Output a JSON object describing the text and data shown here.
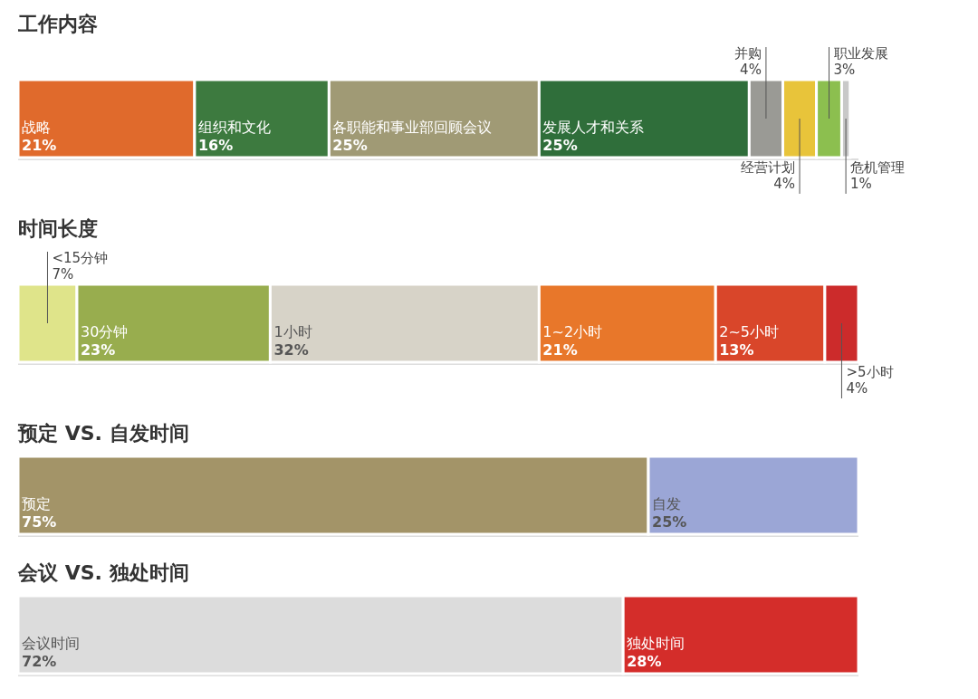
{
  "chart_data": [
    {
      "type": "bar",
      "title": "工作内容",
      "orientation": "horizontal",
      "stacked": true,
      "xlim": [
        0,
        100
      ],
      "categories": [
        null
      ],
      "series": [
        {
          "name": "战略",
          "color": "#e06a2c",
          "values": [
            21
          ],
          "value_labels": [
            "21%"
          ]
        },
        {
          "name": "组织和文化",
          "color": "#3d7a3f",
          "values": [
            16
          ],
          "value_labels": [
            "16%"
          ]
        },
        {
          "name": "各职能和事业部回顾会议",
          "color": "#a09a75",
          "values": [
            25
          ],
          "value_labels": [
            "25%"
          ]
        },
        {
          "name": "发展人才和关系",
          "color": "#2f6e3a",
          "values": [
            25
          ],
          "value_labels": [
            "25%"
          ]
        },
        {
          "name": "并购",
          "color": "#9a9a95",
          "values": [
            4
          ],
          "value_labels": [
            "4%"
          ]
        },
        {
          "name": "经营计划",
          "color": "#e8c43a",
          "values": [
            4
          ],
          "value_labels": [
            "4%"
          ]
        },
        {
          "name": "职业发展",
          "color": "#8cbf4f",
          "values": [
            3
          ],
          "value_labels": [
            "3%"
          ]
        },
        {
          "name": "危机管理",
          "color": "#c8c8c8",
          "values": [
            1
          ],
          "value_labels": [
            "1%"
          ]
        }
      ]
    },
    {
      "type": "bar",
      "title": "时间长度",
      "orientation": "horizontal",
      "stacked": true,
      "xlim": [
        0,
        100
      ],
      "categories": [
        null
      ],
      "series": [
        {
          "name": "<15分钟",
          "color": "#dfe48a",
          "values": [
            7
          ],
          "value_labels": [
            "7%"
          ]
        },
        {
          "name": "30分钟",
          "color": "#98ad4e",
          "values": [
            23
          ],
          "value_labels": [
            "23%"
          ]
        },
        {
          "name": "1小时",
          "color": "#d7d3c8",
          "values": [
            32
          ],
          "value_labels": [
            "32%"
          ]
        },
        {
          "name": "1~2小时",
          "color": "#e8772a",
          "values": [
            21
          ],
          "value_labels": [
            "21%"
          ]
        },
        {
          "name": "2~5小时",
          "color": "#d9462a",
          "values": [
            13
          ],
          "value_labels": [
            "13%"
          ]
        },
        {
          "name": ">5小时",
          "color": "#cc2b2b",
          "values": [
            4
          ],
          "value_labels": [
            "4%"
          ]
        }
      ]
    },
    {
      "type": "bar",
      "title": "预定 VS. 自发时间",
      "orientation": "horizontal",
      "stacked": true,
      "xlim": [
        0,
        100
      ],
      "categories": [
        null
      ],
      "series": [
        {
          "name": "预定",
          "color": "#a39468",
          "values": [
            75
          ],
          "value_labels": [
            "75%"
          ]
        },
        {
          "name": "自发",
          "color": "#9ba6d6",
          "values": [
            25
          ],
          "value_labels": [
            "25%"
          ]
        }
      ]
    },
    {
      "type": "bar",
      "title": "会议 VS. 独处时间",
      "orientation": "horizontal",
      "stacked": true,
      "xlim": [
        0,
        100
      ],
      "categories": [
        null
      ],
      "series": [
        {
          "name": "会议时间",
          "color": "#dcdcdc",
          "values": [
            72
          ],
          "value_labels": [
            "72%"
          ]
        },
        {
          "name": "独处时间",
          "color": "#d42d2a",
          "values": [
            28
          ],
          "value_labels": [
            "28%"
          ]
        }
      ]
    }
  ]
}
